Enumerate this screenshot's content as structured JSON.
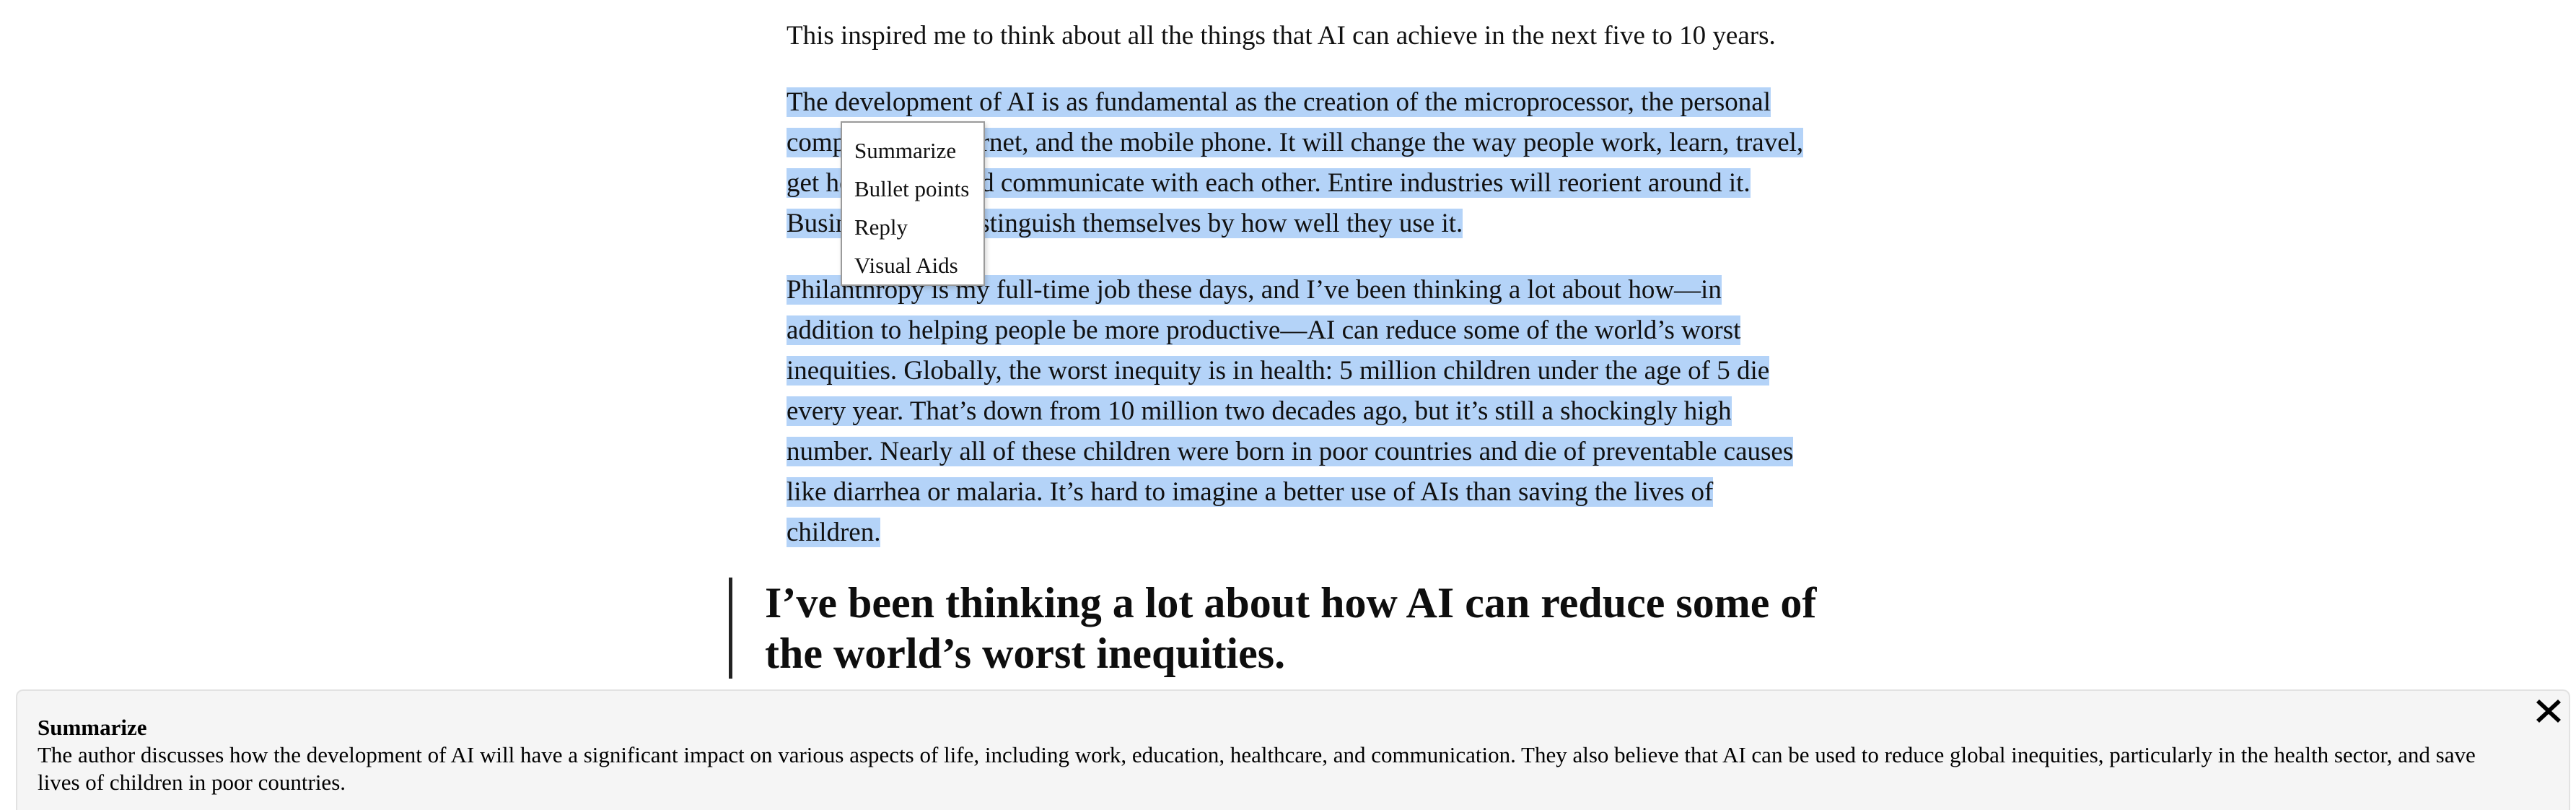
{
  "article": {
    "intro": "This inspired me to think about all the things that AI can achieve in the next five to 10 years.",
    "selected_paragraph_1": "The development of AI is as fundamental as the creation of the microprocessor, the personal computer, the Internet, and the mobile phone. It will change the way people work, learn, travel, get health care, and communicate with each other. Entire industries will reorient around it. Businesses will distinguish themselves by how well they use it.",
    "selected_paragraph_2": "Philanthropy is my full-time job these days, and I’ve been thinking a lot about how—in addition to helping people be more productive—AI can reduce some of the world’s worst inequities. Globally, the worst inequity is in health: 5 million children under the age of 5 die every year. That’s down from 10 million two decades ago, but it’s still a shockingly high number. Nearly all of these children were born in poor countries and die of preventable causes like diarrhea or malaria. It’s hard to imagine a better use of AIs than saving the lives of children.",
    "pull_quote": "I’ve been thinking a lot about how AI can reduce some of the world’s worst inequities."
  },
  "context_menu": {
    "items": [
      "Summarize",
      "Bullet points",
      "Reply",
      "Visual Aids"
    ]
  },
  "summary_panel": {
    "title": "Summarize",
    "body": "The author discusses how the development of AI will have a significant impact on various aspects of life, including work, education, healthcare, and communication. They also believe that AI can be used to reduce global inequities, particularly in the health sector, and save lives of children in poor countries.",
    "close_icon": "close-x-icon"
  },
  "colors": {
    "selection": "#b4d3f8",
    "panel_background": "#f5f5f5",
    "text": "#111111"
  }
}
